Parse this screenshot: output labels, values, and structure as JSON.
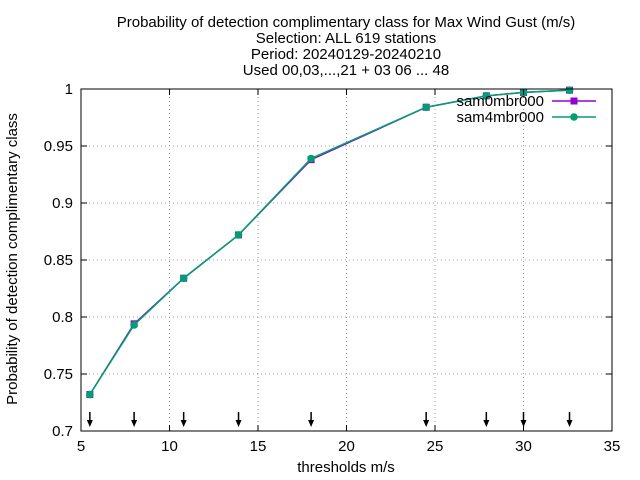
{
  "chart_data": {
    "type": "line",
    "title_lines": [
      "Probability of detection complimentary class  for Max Wind Gust (m/s)",
      "Selection: ALL    619 stations",
      "Period: 20240129-20240210",
      "Used 00,03,...,21 + 03 06 ... 48"
    ],
    "xlabel": "thresholds m/s",
    "ylabel": "Probability of detection complimentary class",
    "xlim": [
      5,
      35
    ],
    "ylim": [
      0.7,
      1.0
    ],
    "xticks": [
      5,
      10,
      15,
      20,
      25,
      30,
      35
    ],
    "xtick_labels": [
      "5",
      "10",
      "15",
      "20",
      "25",
      "30",
      "35"
    ],
    "yticks": [
      0.7,
      0.75,
      0.8,
      0.85,
      0.9,
      0.95,
      1.0
    ],
    "ytick_labels": [
      "0.7",
      "0.75",
      "0.8",
      "0.85",
      "0.9",
      "0.95",
      "1"
    ],
    "grid": true,
    "legend_position": "top-right",
    "threshold_markers": [
      5.5,
      8.0,
      10.8,
      13.9,
      18.0,
      24.5,
      27.9,
      30.0,
      32.6
    ],
    "series": [
      {
        "name": "sam0mbr000",
        "color": "#9400d3",
        "marker": "square",
        "x": [
          5.5,
          8.0,
          10.8,
          13.9,
          18.0,
          24.5,
          27.9,
          30.0,
          32.6
        ],
        "y": [
          0.732,
          0.794,
          0.834,
          0.872,
          0.938,
          0.984,
          0.994,
          0.997,
          0.999
        ]
      },
      {
        "name": "sam4mbr000",
        "color": "#009e73",
        "marker": "circle",
        "x": [
          5.5,
          8.0,
          10.8,
          13.9,
          18.0,
          24.5,
          27.9,
          30.0,
          32.6
        ],
        "y": [
          0.732,
          0.793,
          0.834,
          0.872,
          0.939,
          0.984,
          0.994,
          0.997,
          0.999
        ]
      }
    ]
  }
}
